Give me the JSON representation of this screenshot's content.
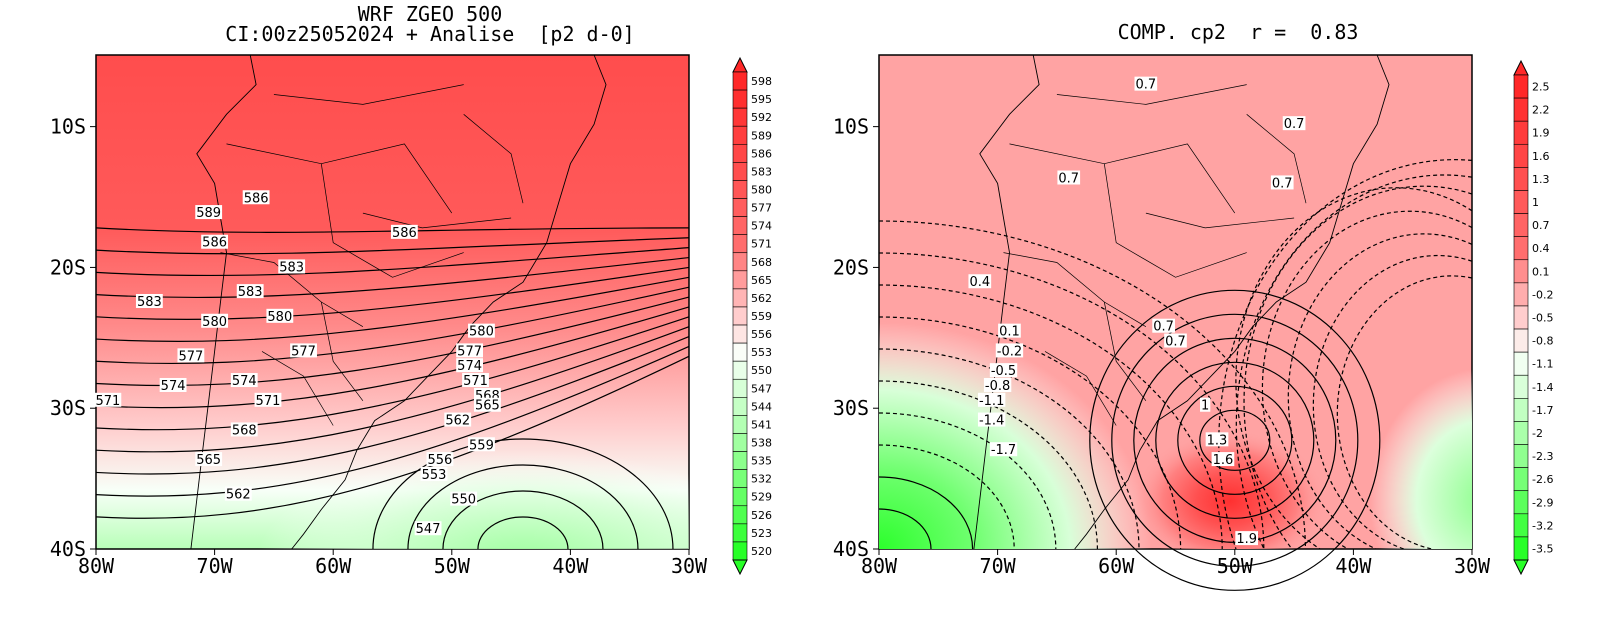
{
  "left_panel": {
    "title_line1": "WRF ZGEO 500",
    "title_line2": "CI:00z25052024 + Analise  [p2 d-0]",
    "colorbar_labels": [
      "598",
      "595",
      "592",
      "589",
      "586",
      "583",
      "580",
      "577",
      "574",
      "571",
      "568",
      "565",
      "562",
      "559",
      "556",
      "553",
      "550",
      "547",
      "544",
      "541",
      "538",
      "535",
      "532",
      "529",
      "526",
      "523",
      "520"
    ],
    "contour_labels": [
      "586",
      "589",
      "586",
      "583",
      "586",
      "583",
      "583",
      "580",
      "580",
      "580",
      "577",
      "577",
      "577",
      "574",
      "574",
      "574",
      "571",
      "571",
      "571",
      "568",
      "568",
      "565",
      "565",
      "562",
      "562",
      "559",
      "556",
      "553",
      "550",
      "547"
    ]
  },
  "right_panel": {
    "title": "COMP. cp2  r =  0.83",
    "colorbar_labels": [
      "2.5",
      "2.2",
      "1.9",
      "1.6",
      "1.3",
      "1",
      "0.7",
      "0.4",
      "0.1",
      "-0.2",
      "-0.5",
      "-0.8",
      "-1.1",
      "-1.4",
      "-1.7",
      "-2",
      "-2.3",
      "-2.6",
      "-2.9",
      "-3.2",
      "-3.5"
    ],
    "contour_labels": [
      "0.7",
      "0.7",
      "0.7",
      "0.7",
      "0.4",
      "0.7",
      "0.7",
      "0.1",
      "-0.2",
      "-0.5",
      "-0.8",
      "-1.1",
      "-1.4",
      "-1.7",
      "1",
      "1.3",
      "1.6",
      "1.9"
    ]
  },
  "axes": {
    "lon_ticks": [
      "80W",
      "70W",
      "60W",
      "50W",
      "40W",
      "30W"
    ],
    "lat_ticks": [
      "10S",
      "20S",
      "30S",
      "40S"
    ]
  },
  "colors": {
    "deep_red": "#ff3b3b",
    "red": "#ff5050",
    "light_red": "#ffa0a0",
    "pale": "#ffe6e6",
    "pale_green": "#e6ffe6",
    "green": "#80ff80",
    "deep_green": "#3cff3c"
  }
}
